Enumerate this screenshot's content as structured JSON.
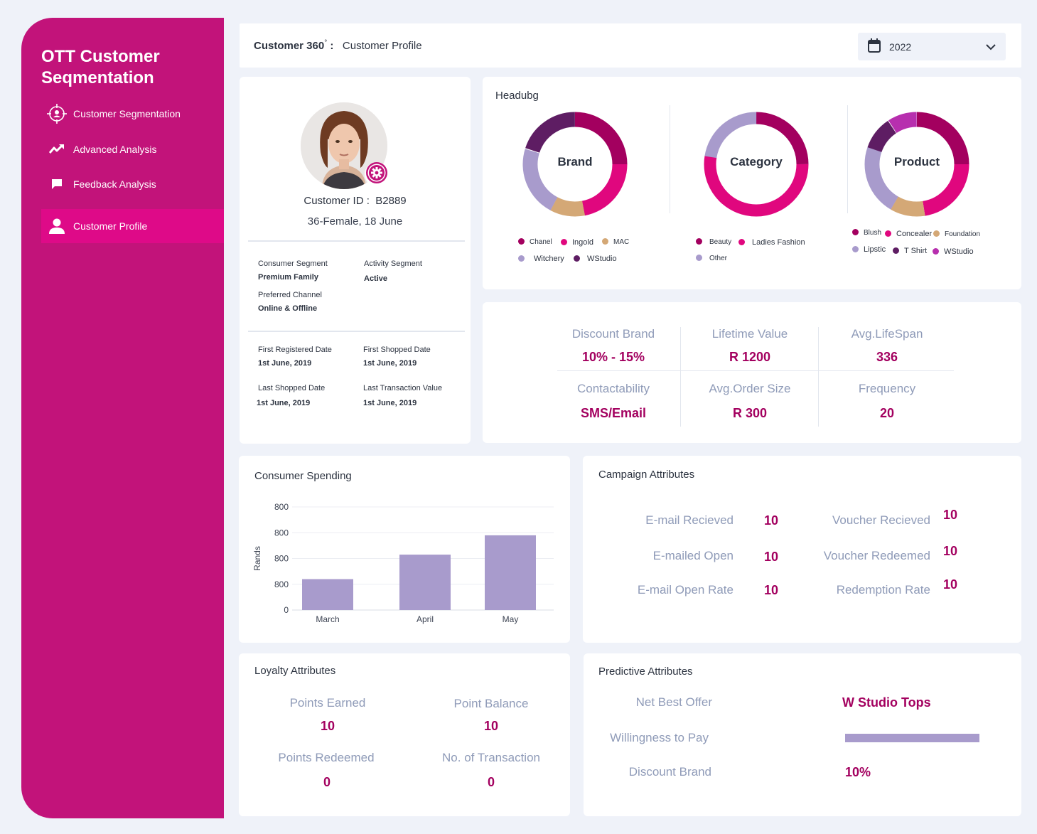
{
  "sidebar": {
    "title_line1": "OTT Customer",
    "title_line2": "Seqmentation",
    "items": [
      {
        "label": "Customer Segmentation"
      },
      {
        "label": "Advanced Analysis"
      },
      {
        "label": "Feedback Analysis"
      },
      {
        "label": "Customer Profile"
      }
    ]
  },
  "header": {
    "title_bold": "Customer 360",
    "degree": "°",
    "colon": " :",
    "subtitle": "Customer Profile",
    "year": "2022"
  },
  "profile": {
    "customer_id_label": "Customer ID :",
    "customer_id": "B2889",
    "demographic": "36-Female,  18 June",
    "consumer_segment_label": "Consumer Segment",
    "consumer_segment": "Premium Family",
    "activity_segment_label": "Activity Segment",
    "activity_segment": "Active",
    "preferred_channel_label": "Preferred Channel",
    "preferred_channel": "Online & Offline",
    "first_registered_label": "First Registered Date",
    "first_registered": "1st June, 2019",
    "first_shopped_label": "First Shopped Date",
    "first_shopped": "1st June, 2019",
    "last_shopped_label": "Last Shopped Date",
    "last_shopped": "1st June, 2019",
    "last_transaction_label": "Last  Transaction Value",
    "last_transaction": "1st June, 2019"
  },
  "donuts": {
    "heading": "Headubg",
    "colors": {
      "chanel": "#a3005f",
      "ingold": "#e0077e",
      "mac": "#d4a876",
      "witchery": "#a89bcc",
      "wstudio": "#5e1d63",
      "blush": "#a3005f",
      "concealer": "#e0077e",
      "foundation": "#d4a876",
      "lipstic": "#a89bcc",
      "tshirt": "#5e1d63",
      "wstudio2": "#b72fae",
      "beauty": "#a3005f",
      "ladies": "#e0077e",
      "other": "#a89bcc"
    },
    "brand": {
      "center": "Brand",
      "legend": [
        "Chanel",
        "Ingold",
        "MAC",
        "Witchery",
        "WStudio"
      ]
    },
    "category": {
      "center": "Category",
      "legend": [
        "Beauty",
        "Ladies Fashion",
        "Other"
      ]
    },
    "product": {
      "center": "Product",
      "legend": [
        "Blush",
        "Concealer",
        "Foundation",
        "Lipstic",
        "T Shirt",
        "WStudio"
      ]
    }
  },
  "metrics": {
    "discount_brand_label": "Discount Brand",
    "discount_brand": "10% - 15%",
    "lifetime_value_label": "Lifetime Value",
    "lifetime_value": "R 1200",
    "avg_lifespan_label": "Avg.LifeSpan",
    "avg_lifespan": "336",
    "contactability_label": "Contactability",
    "contactability": "SMS/Email",
    "avg_order_label": "Avg.Order Size",
    "avg_order": "R 300",
    "frequency_label": "Frequency",
    "frequency": "20"
  },
  "spending": {
    "title": "Consumer Spending",
    "ylabel": "Rands",
    "y_ticks": [
      "800",
      "800",
      "800",
      "800",
      "0"
    ],
    "bar_color": "#a89bcc"
  },
  "chart_data": {
    "type": "bar",
    "title": "Consumer Spending",
    "categories": [
      "March",
      "April",
      "May"
    ],
    "values": [
      240,
      430,
      580
    ],
    "ylabel": "Rands",
    "ylim": [
      0,
      800
    ],
    "grid": true
  },
  "campaign": {
    "title": "Campaign Attributes",
    "email_received_label": "E-mail Recieved",
    "email_received": "10",
    "emailed_open_label": "E-mailed Open",
    "emailed_open": "10",
    "email_open_rate_label": "E-mail Open Rate",
    "email_open_rate": "10",
    "voucher_received_label": "Voucher Recieved",
    "voucher_received": "10",
    "voucher_redeemed_label": "Voucher Redeemed",
    "voucher_redeemed": "10",
    "redemption_rate_label": "Redemption Rate",
    "redemption_rate": "10"
  },
  "loyalty": {
    "title": "Loyalty Attributes",
    "points_earned_label": "Points Earned",
    "points_earned": "10",
    "point_balance_label": "Point Balance",
    "point_balance": "10",
    "points_redeemed_label": "Points Redeemed",
    "points_redeemed": "0",
    "transactions_label": "No. of  Transaction",
    "transactions": "0"
  },
  "predictive": {
    "title": "Predictive Attributes",
    "net_best_offer_label": "Net Best Offer",
    "net_best_offer": "W Studio Tops",
    "willingness_label": "Willingness to Pay",
    "willingness_fill": 1.0,
    "discount_brand_label": "Discount Brand",
    "discount_brand": "10%"
  }
}
